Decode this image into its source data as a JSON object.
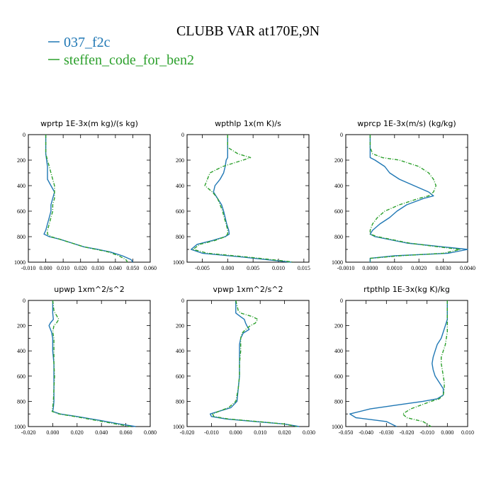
{
  "title": "CLUBB VAR at170E,9N",
  "legend": [
    {
      "label": "037_f2c",
      "color": "#1f77b4"
    },
    {
      "label": "steffen_code_for_ben2",
      "color": "#2ca02c"
    }
  ],
  "chart_data": [
    {
      "type": "line",
      "title": "wprtp  1E-3x(m kg)/(s kg)",
      "xlim": [
        -0.01,
        0.06
      ],
      "ylim": [
        1000,
        0
      ],
      "xticks": [
        "-0.010",
        "0.000",
        "0.010",
        "0.020",
        "0.030",
        "0.040",
        "0.050",
        "0.060"
      ],
      "yticks": [
        "0",
        "200",
        "400",
        "600",
        "800",
        "1000"
      ],
      "y": [
        0,
        100,
        150,
        200,
        250,
        300,
        350,
        400,
        450,
        500,
        550,
        600,
        650,
        700,
        750,
        780,
        800,
        820,
        850,
        880,
        900,
        920,
        950,
        980,
        1000
      ],
      "series": [
        {
          "name": "037_f2c",
          "x": [
            0,
            0,
            0,
            0.0005,
            0.001,
            0.001,
            0.001,
            0.003,
            0.005,
            0.004,
            0.003,
            0.003,
            0.002,
            0.001,
            0,
            -0.001,
            0.002,
            0.008,
            0.015,
            0.022,
            0.03,
            0.037,
            0.044,
            0.049,
            0.05
          ]
        },
        {
          "name": "steffen_code_for_ben2",
          "x": [
            0,
            0,
            0,
            0.001,
            0.002,
            0.003,
            0.004,
            0.005,
            0.005,
            0.005,
            0.004,
            0.004,
            0.003,
            0.002,
            0.001,
            0.001,
            0.003,
            0.008,
            0.015,
            0.022,
            0.029,
            0.036,
            0.042,
            0.046,
            0.047
          ]
        }
      ]
    },
    {
      "type": "line",
      "title": "wpthlp  1x(m K)/s",
      "xlim": [
        -0.008,
        0.016
      ],
      "ylim": [
        1000,
        0
      ],
      "xticks": [
        "-0.005",
        "0.000",
        "0.005",
        "0.010",
        "0.015"
      ],
      "xtick_values": [
        -0.005,
        0,
        0.005,
        0.01,
        0.015
      ],
      "yticks": [
        "0",
        "200",
        "400",
        "600",
        "800",
        "1000"
      ],
      "y": [
        0,
        100,
        150,
        180,
        200,
        250,
        300,
        350,
        400,
        450,
        500,
        550,
        600,
        650,
        700,
        750,
        780,
        800,
        830,
        860,
        900,
        930,
        960,
        990,
        1000
      ],
      "series": [
        {
          "name": "037_f2c",
          "x": [
            0,
            0,
            0,
            0,
            -0.0003,
            -0.0005,
            -0.0008,
            -0.0015,
            -0.0025,
            -0.0028,
            -0.002,
            -0.0012,
            -0.0008,
            -0.0005,
            -0.0002,
            0.0002,
            0.0003,
            -0.0005,
            -0.003,
            -0.006,
            -0.0072,
            -0.005,
            0.003,
            0.01,
            0.0125
          ]
        },
        {
          "name": "steffen_code_for_ben2",
          "x": [
            0,
            0,
            0.002,
            0.0045,
            0.003,
            -0.001,
            -0.0035,
            -0.004,
            -0.0045,
            -0.003,
            -0.002,
            -0.0015,
            -0.001,
            -0.0007,
            -0.0003,
            0,
            0,
            -0.0005,
            -0.0025,
            -0.0055,
            -0.0068,
            -0.004,
            0.004,
            0.011,
            0.013
          ]
        }
      ]
    },
    {
      "type": "line",
      "title": "wprcp  1E-3x(m/s) (kg/kg)",
      "xlim": [
        -0.001,
        0.004
      ],
      "ylim": [
        1000,
        0
      ],
      "xticks": [
        "-0.0010",
        "0.0000",
        "0.0010",
        "0.0020",
        "0.0030",
        "0.0040"
      ],
      "yticks": [
        "0",
        "200",
        "400",
        "600",
        "800",
        "1000"
      ],
      "y": [
        0,
        100,
        150,
        180,
        200,
        250,
        300,
        350,
        400,
        450,
        480,
        500,
        550,
        600,
        650,
        700,
        750,
        780,
        800,
        850,
        880,
        900,
        930,
        950,
        970,
        1000
      ],
      "series": [
        {
          "name": "037_f2c",
          "x": [
            0,
            0,
            0,
            0,
            0.0002,
            0.0006,
            0.0008,
            0.0012,
            0.0018,
            0.0024,
            0.0026,
            0.0022,
            0.0015,
            0.0011,
            0.0008,
            0.0004,
            0.0001,
            0,
            0.0002,
            0.0015,
            0.003,
            0.004,
            0.0032,
            0.001,
            0,
            0
          ]
        },
        {
          "name": "steffen_code_for_ben2",
          "x": [
            0,
            0,
            0.0001,
            0.0005,
            0.0012,
            0.002,
            0.0024,
            0.0026,
            0.0027,
            0.0026,
            0.0024,
            0.002,
            0.0012,
            0.0006,
            0.0003,
            0.0001,
            0,
            0,
            0.0003,
            0.0016,
            0.0028,
            0.0037,
            0.003,
            0.0012,
            0,
            0
          ]
        }
      ]
    },
    {
      "type": "line",
      "title": "upwp  1xm^2/s^2",
      "xlim": [
        -0.02,
        0.08
      ],
      "ylim": [
        1000,
        0
      ],
      "xticks": [
        "-0.020",
        "0.000",
        "0.020",
        "0.040",
        "0.060",
        "0.080"
      ],
      "yticks": [
        "0",
        "200",
        "400",
        "600",
        "800",
        "1000"
      ],
      "y": [
        0,
        80,
        100,
        150,
        180,
        200,
        250,
        300,
        400,
        500,
        600,
        700,
        800,
        850,
        880,
        900,
        920,
        950,
        980,
        1000
      ],
      "series": [
        {
          "name": "037_f2c",
          "x": [
            0,
            0,
            0,
            0.0005,
            -0.002,
            -0.003,
            -0.001,
            0,
            0,
            0.001,
            0.001,
            0.001,
            0.001,
            0.0005,
            0,
            0.006,
            0.02,
            0.038,
            0.055,
            0.068
          ]
        },
        {
          "name": "steffen_code_for_ben2",
          "x": [
            0,
            0.001,
            0.002,
            0.005,
            0.003,
            0.001,
            0,
            0.001,
            0.001,
            0.001,
            0.0015,
            0.001,
            0.0005,
            0,
            -0.0005,
            0.005,
            0.018,
            0.035,
            0.052,
            0.064
          ]
        }
      ]
    },
    {
      "type": "line",
      "title": "vpwp  1xm^2/s^2",
      "xlim": [
        -0.02,
        0.03
      ],
      "ylim": [
        1000,
        0
      ],
      "xticks": [
        "-0.020",
        "-0.010",
        "0.000",
        "0.010",
        "0.020",
        "0.030"
      ],
      "yticks": [
        "0",
        "200",
        "400",
        "600",
        "800",
        "1000"
      ],
      "y": [
        0,
        80,
        100,
        130,
        150,
        180,
        200,
        230,
        260,
        300,
        350,
        400,
        500,
        600,
        700,
        800,
        850,
        880,
        900,
        920,
        940,
        960,
        980,
        1000
      ],
      "series": [
        {
          "name": "037_f2c",
          "x": [
            0,
            0,
            0,
            0.002,
            0.0035,
            0.004,
            0.0045,
            0.0055,
            0.003,
            0.002,
            0.0015,
            0.0015,
            0.0015,
            0.0015,
            0.001,
            0.0005,
            -0.002,
            -0.007,
            -0.0105,
            -0.01,
            -0.004,
            0.008,
            0.02,
            0.026
          ]
        },
        {
          "name": "steffen_code_for_ben2",
          "x": [
            0,
            0.001,
            0.002,
            0.007,
            0.009,
            0.008,
            0.006,
            0.004,
            0.0025,
            0.002,
            0.002,
            0.002,
            0.0015,
            0.0015,
            0.001,
            0,
            -0.003,
            -0.007,
            -0.0095,
            -0.009,
            -0.003,
            0.009,
            0.02,
            0.025
          ]
        }
      ]
    },
    {
      "type": "line",
      "title": "rtpthlp  1E-3x(kg K)/kg",
      "xlim": [
        -0.05,
        0.01
      ],
      "ylim": [
        1000,
        0
      ],
      "xticks": [
        "-0.050",
        "-0.040",
        "-0.030",
        "-0.020",
        "-0.010",
        "0.000",
        "0.010"
      ],
      "yticks": [
        "0",
        "200",
        "400",
        "600",
        "800",
        "1000"
      ],
      "y": [
        0,
        100,
        150,
        200,
        250,
        300,
        350,
        400,
        450,
        500,
        550,
        600,
        650,
        700,
        750,
        780,
        800,
        830,
        860,
        900,
        930,
        960,
        1000
      ],
      "series": [
        {
          "name": "037_f2c",
          "x": [
            0,
            0,
            0,
            -0.001,
            -0.002,
            -0.003,
            -0.005,
            -0.006,
            -0.007,
            -0.0075,
            -0.007,
            -0.006,
            -0.004,
            -0.002,
            -0.002,
            -0.005,
            -0.012,
            -0.025,
            -0.038,
            -0.048,
            -0.045,
            -0.03,
            -0.025
          ]
        },
        {
          "name": "steffen_code_for_ben2",
          "x": [
            0,
            0,
            0,
            0,
            0,
            -0.0005,
            -0.001,
            -0.002,
            -0.003,
            -0.003,
            -0.0025,
            -0.002,
            -0.0015,
            -0.0015,
            -0.002,
            -0.004,
            -0.008,
            -0.013,
            -0.018,
            -0.022,
            -0.02,
            -0.012,
            -0.008
          ]
        }
      ]
    }
  ]
}
